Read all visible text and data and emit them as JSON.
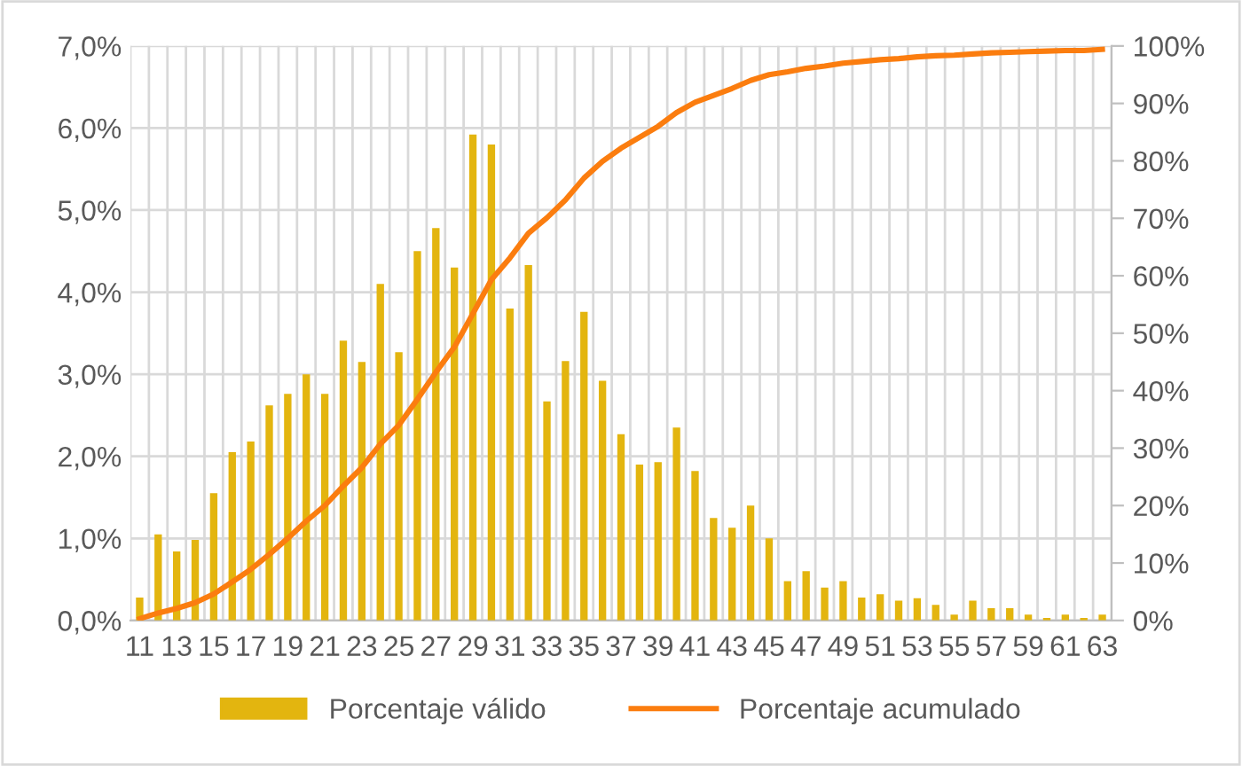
{
  "chart_data": {
    "type": "bar",
    "categories": [
      "11",
      null,
      "13",
      null,
      "15",
      null,
      "17",
      null,
      "19",
      null,
      "21",
      null,
      "23",
      null,
      "25",
      null,
      "27",
      null,
      "29",
      null,
      "31",
      null,
      "33",
      null,
      "35",
      null,
      "37",
      null,
      "39",
      null,
      "41",
      null,
      "43",
      null,
      "45",
      null,
      "47",
      null,
      "49",
      null,
      "51",
      null,
      "53",
      null,
      "55",
      null,
      "57",
      null,
      "59",
      null,
      "61",
      null,
      "63"
    ],
    "series": [
      {
        "name": "Porcentaje válido",
        "color": "#e3b50f",
        "values": [
          0.28,
          1.05,
          0.84,
          0.98,
          1.55,
          2.05,
          2.18,
          2.62,
          2.76,
          3.0,
          2.76,
          3.41,
          3.15,
          4.1,
          3.27,
          4.5,
          4.78,
          4.3,
          5.92,
          5.8,
          3.8,
          4.33,
          2.67,
          3.16,
          3.76,
          2.92,
          2.27,
          1.9,
          1.93,
          2.35,
          1.82,
          1.25,
          1.13,
          1.4,
          1.0,
          0.48,
          0.6,
          0.4,
          0.48,
          0.28,
          0.32,
          0.24,
          0.27,
          0.19,
          0.07,
          0.24,
          0.15,
          0.15,
          0.07,
          0.03,
          0.07,
          0.03,
          0.07
        ]
      },
      {
        "name": "Porcentaje acumulado",
        "type": "line",
        "axis": "y2",
        "color": "#fb7d0f",
        "values": [
          0.3,
          1.3,
          2.1,
          3.1,
          4.6,
          6.7,
          8.9,
          11.5,
          14.3,
          17.3,
          20.0,
          23.4,
          26.6,
          30.7,
          34.0,
          38.5,
          43.2,
          47.6,
          53.4,
          59.3,
          63.1,
          67.4,
          70.1,
          73.2,
          77.0,
          79.9,
          82.2,
          84.1,
          86.0,
          88.4,
          90.2,
          91.4,
          92.6,
          94.0,
          95.0,
          95.5,
          96.1,
          96.5,
          97.0,
          97.3,
          97.6,
          97.8,
          98.1,
          98.3,
          98.4,
          98.6,
          98.8,
          98.9,
          99.0,
          99.1,
          99.2,
          99.2,
          99.4
        ]
      }
    ],
    "ylim": [
      0,
      7
    ],
    "yticks": [
      {
        "value": 0,
        "label": "0,0%"
      },
      {
        "value": 1,
        "label": "1,0%"
      },
      {
        "value": 2,
        "label": "2,0%"
      },
      {
        "value": 3,
        "label": "3,0%"
      },
      {
        "value": 4,
        "label": "4,0%"
      },
      {
        "value": 5,
        "label": "5,0%"
      },
      {
        "value": 6,
        "label": "6,0%"
      },
      {
        "value": 7,
        "label": "7,0%"
      }
    ],
    "y2lim": [
      0,
      100
    ],
    "y2ticks": [
      {
        "value": 0,
        "label": "0%"
      },
      {
        "value": 10,
        "label": "10%"
      },
      {
        "value": 20,
        "label": "20%"
      },
      {
        "value": 30,
        "label": "30%"
      },
      {
        "value": 40,
        "label": "40%"
      },
      {
        "value": 50,
        "label": "50%"
      },
      {
        "value": 60,
        "label": "60%"
      },
      {
        "value": 70,
        "label": "70%"
      },
      {
        "value": 80,
        "label": "80%"
      },
      {
        "value": 90,
        "label": "90%"
      },
      {
        "value": 100,
        "label": "100%"
      }
    ],
    "grid": true,
    "legend": "bottom"
  }
}
